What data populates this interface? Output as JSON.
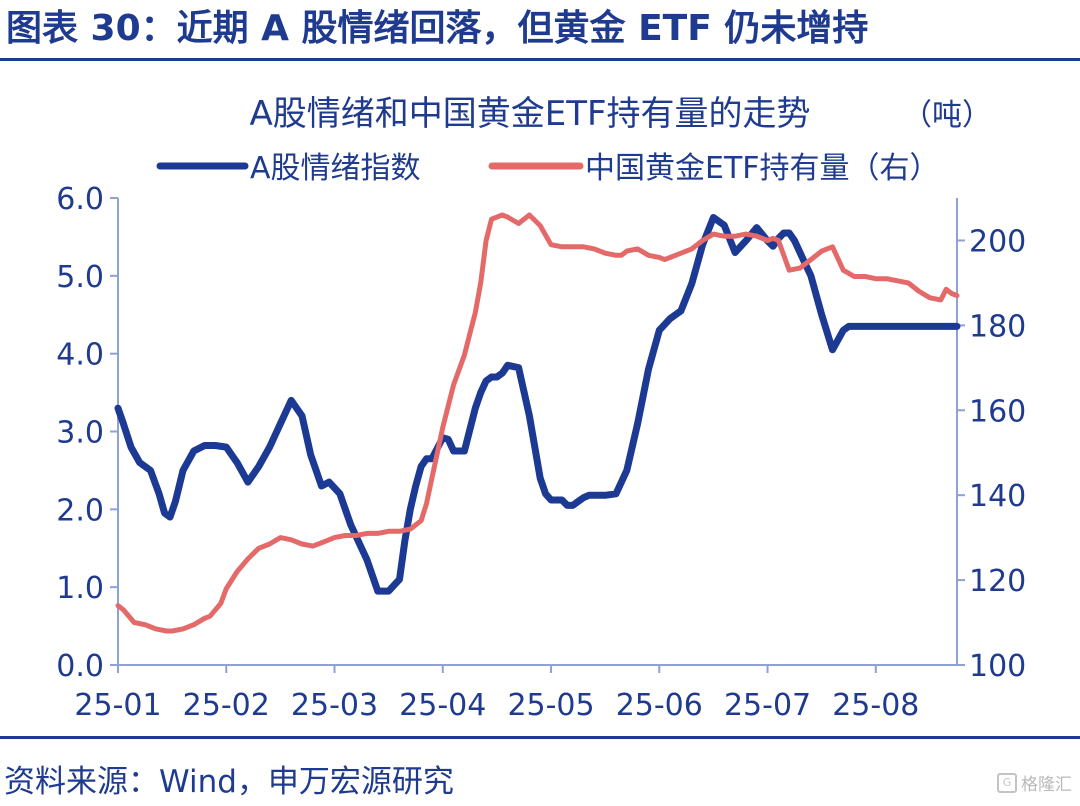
{
  "header": {
    "figure_title": "图表 30：近期 A 股情绪回落，但黄金 ETF 仍未增持"
  },
  "footer": {
    "source": "资料来源：Wind，申万宏源研究",
    "watermark": "格隆汇"
  },
  "colors": {
    "brand": "#1f3b8f",
    "series_sentiment": "#1c3a94",
    "series_etf": "#e46a6a",
    "axis": "#8fa1d6"
  },
  "chart_data": {
    "type": "line",
    "title": "A股情绪和中国黄金ETF持有量的走势",
    "y2_unit_label": "（吨）",
    "legend_position": "top",
    "grid": false,
    "x_tick_labels": [
      "25-01",
      "25-02",
      "25-03",
      "25-04",
      "25-05",
      "25-06",
      "25-07",
      "25-08"
    ],
    "xlim": [
      1.0,
      8.75
    ],
    "ylim_left": [
      0,
      6
    ],
    "ylim_right": [
      100,
      210
    ],
    "y_ticks_left": [
      "0.0",
      "1.0",
      "2.0",
      "3.0",
      "4.0",
      "5.0",
      "6.0"
    ],
    "y_ticks_right": [
      "100",
      "120",
      "140",
      "160",
      "180",
      "200"
    ],
    "series": [
      {
        "name": "A股情绪指数",
        "axis": "left",
        "color": "#1c3a94",
        "x": [
          1.0,
          1.05,
          1.12,
          1.2,
          1.3,
          1.38,
          1.43,
          1.48,
          1.53,
          1.6,
          1.7,
          1.8,
          1.9,
          2.0,
          2.1,
          2.2,
          2.3,
          2.4,
          2.5,
          2.6,
          2.7,
          2.78,
          2.83,
          2.88,
          2.95,
          3.05,
          3.1,
          3.15,
          3.25,
          3.3,
          3.4,
          3.5,
          3.6,
          3.65,
          3.7,
          3.75,
          3.8,
          3.85,
          3.9,
          4.0,
          4.05,
          4.1,
          4.2,
          4.3,
          4.35,
          4.4,
          4.45,
          4.5,
          4.55,
          4.6,
          4.7,
          4.8,
          4.9,
          4.95,
          5.0,
          5.1,
          5.15,
          5.2,
          5.25,
          5.3,
          5.35,
          5.4,
          5.45,
          5.5,
          5.6,
          5.7,
          5.8,
          5.9,
          6.0,
          6.1,
          6.2,
          6.3,
          6.4,
          6.5,
          6.6,
          6.7,
          6.8,
          6.9,
          7.0,
          7.05,
          7.1,
          7.15,
          7.2,
          7.25,
          7.3,
          7.35,
          7.4,
          7.5,
          7.6,
          7.7,
          7.75,
          7.8,
          7.85,
          7.9,
          7.95,
          8.0,
          8.05,
          8.1,
          8.2,
          8.3,
          8.4,
          8.5,
          8.6,
          8.65,
          8.7,
          8.75
        ],
        "values": [
          3.3,
          3.1,
          2.8,
          2.6,
          2.5,
          2.2,
          1.95,
          1.9,
          2.1,
          2.5,
          2.75,
          2.82,
          2.82,
          2.8,
          2.6,
          2.35,
          2.55,
          2.8,
          3.1,
          3.4,
          3.2,
          2.7,
          2.5,
          2.3,
          2.35,
          2.2,
          2.0,
          1.8,
          1.5,
          1.35,
          0.95,
          0.95,
          1.1,
          1.6,
          2.0,
          2.3,
          2.55,
          2.65,
          2.65,
          2.92,
          2.9,
          2.75,
          2.75,
          3.3,
          3.5,
          3.65,
          3.7,
          3.7,
          3.75,
          3.85,
          3.82,
          3.2,
          2.4,
          2.2,
          2.12,
          2.12,
          2.05,
          2.05,
          2.1,
          2.15,
          2.18,
          2.18,
          2.18,
          2.18,
          2.2,
          2.5,
          3.1,
          3.8,
          4.3,
          4.45,
          4.55,
          4.9,
          5.4,
          5.75,
          5.65,
          5.3,
          5.45,
          5.62,
          5.45,
          5.38,
          5.48,
          5.55,
          5.55,
          5.45,
          5.3,
          5.15,
          5.0,
          4.5,
          4.05,
          4.3,
          4.35,
          4.35,
          4.35,
          4.35,
          4.35,
          4.35,
          4.35,
          4.35,
          4.35,
          4.35,
          4.35,
          4.35,
          4.35,
          4.35,
          4.35,
          4.35
        ]
      },
      {
        "name": "中国黄金ETF持有量（右）",
        "axis": "right",
        "color": "#e46a6a",
        "x": [
          1.0,
          1.05,
          1.15,
          1.25,
          1.35,
          1.45,
          1.5,
          1.6,
          1.7,
          1.8,
          1.85,
          1.9,
          1.95,
          2.0,
          2.05,
          2.1,
          2.2,
          2.3,
          2.4,
          2.5,
          2.6,
          2.7,
          2.8,
          2.9,
          3.0,
          3.1,
          3.2,
          3.3,
          3.4,
          3.5,
          3.6,
          3.7,
          3.8,
          3.85,
          3.9,
          4.0,
          4.1,
          4.2,
          4.25,
          4.3,
          4.35,
          4.4,
          4.45,
          4.5,
          4.55,
          4.6,
          4.7,
          4.75,
          4.8,
          4.9,
          5.0,
          5.1,
          5.2,
          5.3,
          5.4,
          5.5,
          5.6,
          5.65,
          5.7,
          5.8,
          5.9,
          6.0,
          6.05,
          6.1,
          6.2,
          6.3,
          6.4,
          6.5,
          6.6,
          6.7,
          6.8,
          6.9,
          7.0,
          7.05,
          7.1,
          7.2,
          7.3,
          7.35,
          7.4,
          7.5,
          7.6,
          7.7,
          7.8,
          7.9,
          8.0,
          8.1,
          8.2,
          8.3,
          8.4,
          8.5,
          8.6,
          8.65,
          8.7,
          8.75
        ],
        "values": [
          114,
          113,
          110,
          109.5,
          108.5,
          108,
          108,
          108.5,
          109.5,
          111,
          111.5,
          113,
          114.5,
          118,
          120,
          122,
          125,
          127.5,
          128.5,
          130,
          129.5,
          128.5,
          128,
          129,
          130,
          130.5,
          130.5,
          131,
          131,
          131.5,
          131.5,
          132,
          134,
          138,
          144,
          156,
          166,
          173,
          178,
          183,
          190,
          200,
          205,
          205.5,
          206,
          205.5,
          204,
          205,
          206,
          203.5,
          199,
          198.5,
          198.5,
          198.5,
          198,
          197,
          196.5,
          196.5,
          197.5,
          198,
          196.5,
          196,
          195.5,
          196,
          197,
          198,
          200,
          201.5,
          201,
          201,
          201.5,
          201,
          200,
          200.5,
          200,
          193,
          193.5,
          194.5,
          195.5,
          197.5,
          198.5,
          193,
          191.5,
          191.5,
          191,
          191,
          190.5,
          190,
          188,
          186.5,
          186,
          188.5,
          187.5,
          187
        ]
      }
    ]
  }
}
